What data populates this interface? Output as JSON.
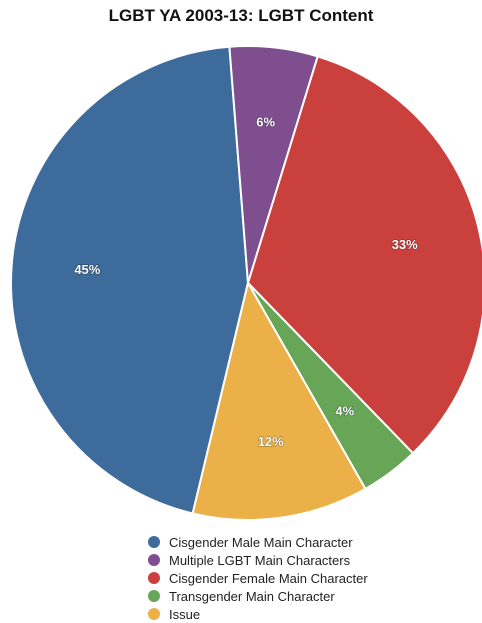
{
  "chart_data": {
    "type": "pie",
    "title": "LGBT YA 2003-13: LGBT Content",
    "slices": [
      {
        "name": "Cisgender Male Main Character",
        "value": 45,
        "label": "45%",
        "color": "#3d6b9c"
      },
      {
        "name": "Multiple LGBT Main Characters",
        "value": 6,
        "label": "6%",
        "color": "#7f4e8e"
      },
      {
        "name": "Cisgender Female Main Character",
        "value": 33,
        "label": "33%",
        "color": "#c9403d"
      },
      {
        "name": "Transgender Main Character",
        "value": 4,
        "label": "4%",
        "color": "#67a656"
      },
      {
        "name": "Issue",
        "value": 12,
        "label": "12%",
        "color": "#ebb148"
      }
    ],
    "legend_position": "bottom"
  }
}
